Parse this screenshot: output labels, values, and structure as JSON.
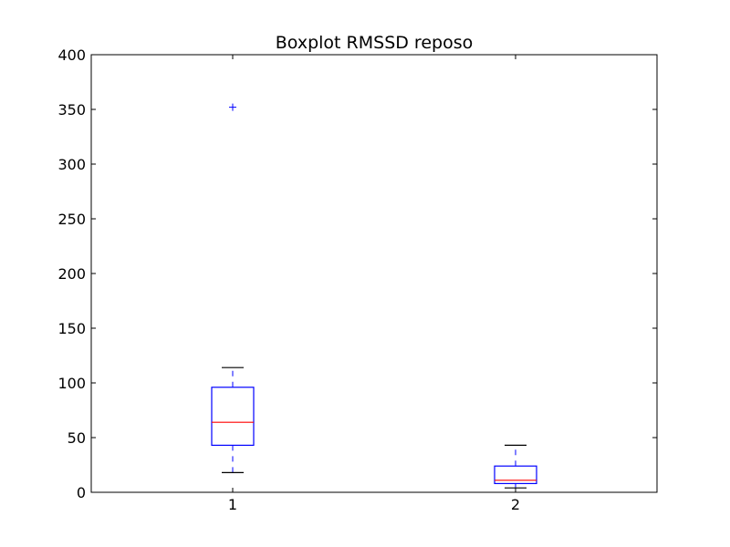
{
  "chart_data": {
    "type": "box",
    "title": "Boxplot RMSSD reposo",
    "xlabel": "",
    "ylabel": "",
    "categories": [
      "1",
      "2"
    ],
    "ylim": [
      0,
      400
    ],
    "yticks": [
      0,
      50,
      100,
      150,
      200,
      250,
      300,
      350,
      400
    ],
    "grid": false,
    "boxes": [
      {
        "label": "1",
        "whisker_low": 18,
        "q1": 43,
        "median": 64,
        "q3": 96,
        "whisker_high": 114,
        "outliers": [
          352
        ]
      },
      {
        "label": "2",
        "whisker_low": 4,
        "q1": 8,
        "median": 11,
        "q3": 24,
        "whisker_high": 43,
        "outliers": []
      }
    ],
    "colors": {
      "box": "#0000ff",
      "median": "#ff0000",
      "cap": "#000000",
      "outlier": "#0000ff"
    }
  }
}
